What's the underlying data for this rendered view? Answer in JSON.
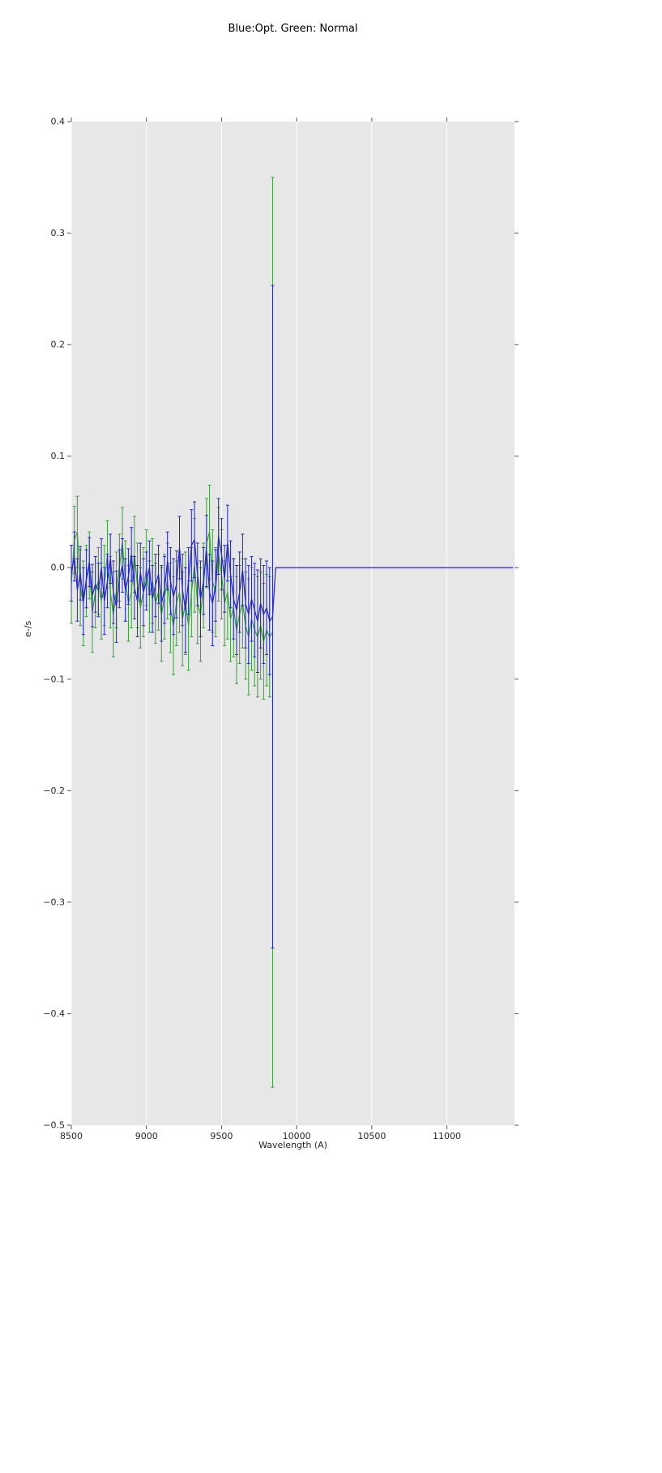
{
  "chart_data": {
    "type": "line",
    "title": "Blue:Opt. Green: Normal",
    "xlabel": "Wavelength (A)",
    "ylabel": "e-/s",
    "xlim": [
      8500,
      11450
    ],
    "ylim": [
      -0.5,
      0.4
    ],
    "xticks": [
      8500,
      9000,
      9500,
      10000,
      10500,
      11000
    ],
    "xtick_labels": [
      "8500",
      "9000",
      "9500",
      "10000",
      "10500",
      "11000"
    ],
    "yticks": [
      0.4,
      0.3,
      0.2,
      0.1,
      0.0,
      -0.1,
      -0.2,
      -0.3,
      -0.4,
      -0.5
    ],
    "ytick_labels": [
      "0.4",
      "0.3",
      "0.2",
      "0.1",
      "0.0",
      "−0.1",
      "−0.2",
      "−0.3",
      "−0.4",
      "−0.5"
    ],
    "grid": "vertical white gridlines on gray plot background, ticks on all four sides",
    "legend_position": "none (series identified in title)",
    "plot_background": "#e7e7e7",
    "grid_color": "#ffffff",
    "tick_color": "#555555",
    "tick_label_color": "#262626",
    "x": [
      8500,
      8520,
      8540,
      8560,
      8580,
      8600,
      8620,
      8640,
      8660,
      8680,
      8700,
      8720,
      8740,
      8760,
      8780,
      8800,
      8820,
      8840,
      8860,
      8880,
      8900,
      8920,
      8940,
      8960,
      8980,
      9000,
      9020,
      9040,
      9060,
      9080,
      9100,
      9120,
      9140,
      9160,
      9180,
      9200,
      9220,
      9240,
      9260,
      9280,
      9300,
      9320,
      9340,
      9360,
      9380,
      9400,
      9420,
      9440,
      9460,
      9480,
      9500,
      9520,
      9540,
      9560,
      9580,
      9600,
      9620,
      9640,
      9660,
      9680,
      9700,
      9720,
      9740,
      9760,
      9780,
      9800,
      9820,
      9840
    ],
    "series": [
      {
        "name": "Normal",
        "color": "#3a9e3a",
        "style": "errorbar-line",
        "y": [
          -0.015,
          0.025,
          0.032,
          -0.018,
          -0.032,
          -0.012,
          0.002,
          -0.04,
          -0.022,
          -0.012,
          -0.03,
          -0.016,
          0.012,
          -0.022,
          -0.042,
          -0.02,
          0.0,
          0.022,
          -0.012,
          -0.032,
          -0.022,
          0.012,
          -0.016,
          -0.036,
          -0.022,
          0.0,
          -0.026,
          -0.012,
          -0.032,
          -0.022,
          -0.042,
          -0.026,
          -0.012,
          -0.036,
          -0.052,
          -0.032,
          -0.022,
          -0.046,
          -0.032,
          -0.052,
          -0.022,
          0.002,
          -0.032,
          -0.042,
          -0.016,
          0.022,
          0.032,
          -0.012,
          -0.022,
          0.012,
          -0.006,
          -0.032,
          -0.022,
          -0.046,
          -0.036,
          -0.056,
          -0.042,
          -0.032,
          -0.052,
          -0.062,
          -0.046,
          -0.056,
          -0.062,
          -0.052,
          -0.066,
          -0.056,
          -0.062,
          -0.058
        ],
        "yerr": [
          0.035,
          0.03,
          0.032,
          0.034,
          0.038,
          0.032,
          0.03,
          0.036,
          0.032,
          0.03,
          0.034,
          0.036,
          0.03,
          0.032,
          0.038,
          0.034,
          0.03,
          0.032,
          0.036,
          0.034,
          0.032,
          0.034,
          0.038,
          0.036,
          0.04,
          0.034,
          0.032,
          0.038,
          0.036,
          0.034,
          0.042,
          0.038,
          0.034,
          0.04,
          0.044,
          0.038,
          0.036,
          0.042,
          0.046,
          0.04,
          0.04,
          0.042,
          0.036,
          0.042,
          0.038,
          0.04,
          0.042,
          0.046,
          0.04,
          0.042,
          0.04,
          0.038,
          0.042,
          0.038,
          0.044,
          0.048,
          0.044,
          0.04,
          0.048,
          0.052,
          0.046,
          0.05,
          0.054,
          0.048,
          0.052,
          0.05,
          0.054,
          0.408
        ]
      },
      {
        "name": "Opt",
        "color": "#2424cc",
        "style": "errorbar-line",
        "y": [
          -0.005,
          0.01,
          -0.02,
          -0.005,
          -0.03,
          -0.01,
          0.005,
          -0.025,
          -0.015,
          -0.02,
          0.0,
          -0.03,
          -0.012,
          0.008,
          -0.022,
          -0.035,
          -0.01,
          0.002,
          -0.02,
          -0.008,
          0.012,
          -0.018,
          -0.03,
          -0.004,
          -0.022,
          -0.012,
          0.0,
          -0.028,
          -0.016,
          -0.006,
          -0.032,
          -0.02,
          0.006,
          -0.012,
          -0.026,
          -0.015,
          0.018,
          -0.02,
          -0.038,
          -0.012,
          0.02,
          0.025,
          -0.006,
          -0.028,
          -0.012,
          0.015,
          -0.022,
          -0.032,
          -0.016,
          0.028,
          0.012,
          -0.01,
          0.022,
          -0.006,
          -0.028,
          -0.038,
          -0.022,
          -0.002,
          -0.032,
          -0.042,
          -0.028,
          -0.038,
          -0.048,
          -0.032,
          -0.042,
          -0.036,
          -0.048,
          -0.044
        ],
        "yerr": [
          0.025,
          0.022,
          0.028,
          0.024,
          0.03,
          0.026,
          0.022,
          0.028,
          0.025,
          0.024,
          0.026,
          0.03,
          0.024,
          0.022,
          0.028,
          0.032,
          0.026,
          0.024,
          0.028,
          0.025,
          0.024,
          0.028,
          0.032,
          0.026,
          0.03,
          0.026,
          0.024,
          0.03,
          0.028,
          0.026,
          0.034,
          0.03,
          0.026,
          0.03,
          0.034,
          0.03,
          0.028,
          0.032,
          0.038,
          0.03,
          0.032,
          0.034,
          0.028,
          0.034,
          0.03,
          0.032,
          0.034,
          0.038,
          0.032,
          0.034,
          0.032,
          0.03,
          0.034,
          0.03,
          0.036,
          0.04,
          0.036,
          0.032,
          0.04,
          0.044,
          0.038,
          0.042,
          0.046,
          0.04,
          0.044,
          0.042,
          0.048,
          0.297
        ],
        "flat_tail": {
          "x": [
            9860,
            11440
          ],
          "y": 0.0
        }
      }
    ]
  }
}
